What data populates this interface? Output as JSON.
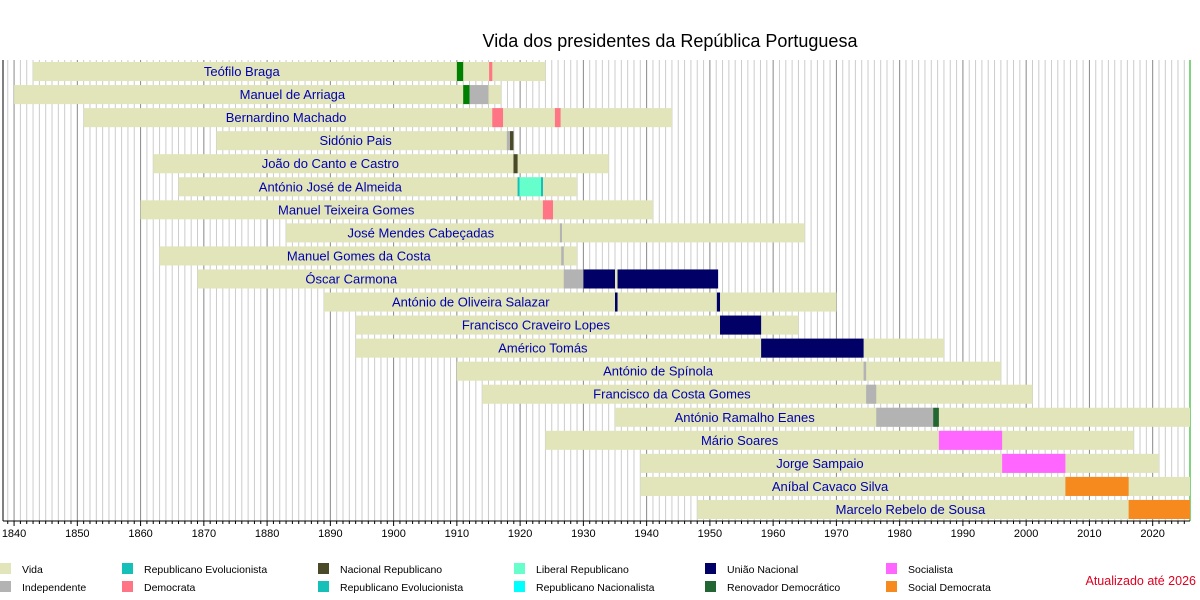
{
  "chart_data": {
    "type": "timeline",
    "title": "Vida dos presidentes da República Portuguesa",
    "xlim": [
      1838.25,
      2025.9
    ],
    "x_ticks": [
      1840,
      1850,
      1860,
      1870,
      1880,
      1890,
      1900,
      1910,
      1920,
      1930,
      1940,
      1950,
      1960,
      1970,
      1980,
      1990,
      2000,
      2010,
      2020
    ],
    "grid": "yearly vertical lines, darker each decade",
    "colors": {
      "vida": "#e1e5b9",
      "independente": "#b3b3b3",
      "rep_evol": "#14c0b8",
      "democrata": "#ff7585",
      "nac_rep": "#4a4a28",
      "liberal": "#66ffcc",
      "rep_nac": "#00ffff",
      "uniao": "#000066",
      "renovador": "#226633",
      "socialista": "#ff66ff",
      "social_dem": "#f68a1e",
      "republicano": "#008000"
    },
    "presidents": [
      {
        "name": "Teófilo Braga",
        "life": [
          1843,
          1924
        ],
        "label_year": 1876,
        "terms": [
          [
            1910,
            1911,
            "republicano"
          ],
          [
            1915.1,
            1915.6,
            "democrata"
          ]
        ]
      },
      {
        "name": "Manuel de Arriaga",
        "life": [
          1840,
          1917
        ],
        "label_year": 1884,
        "terms": [
          [
            1911,
            1912,
            "republicano"
          ],
          [
            1912,
            1915,
            "independente"
          ]
        ]
      },
      {
        "name": "Bernardino Machado",
        "life": [
          1851,
          1944
        ],
        "label_year": 1883,
        "terms": [
          [
            1915.6,
            1917.3,
            "democrata"
          ],
          [
            1925.5,
            1926.4,
            "democrata"
          ]
        ]
      },
      {
        "name": "Sidónio Pais",
        "life": [
          1872,
          1918.9
        ],
        "label_year": 1894,
        "terms": [
          [
            1917.9,
            1918.4,
            "independente"
          ],
          [
            1918.4,
            1918.95,
            "nac_rep"
          ]
        ]
      },
      {
        "name": "João do Canto e Castro",
        "life": [
          1862,
          1934
        ],
        "label_year": 1890,
        "terms": [
          [
            1918.95,
            1919.6,
            "nac_rep"
          ]
        ]
      },
      {
        "name": "António José de Almeida",
        "life": [
          1866,
          1929
        ],
        "label_year": 1890,
        "terms": [
          [
            1919.6,
            1919.9,
            "rep_evol"
          ],
          [
            1919.9,
            1923.3,
            "liberal"
          ],
          [
            1923.3,
            1923.6,
            "rep_evol"
          ]
        ]
      },
      {
        "name": "Manuel Teixeira Gomes",
        "life": [
          1860,
          1941
        ],
        "label_year": 1892.5,
        "terms": [
          [
            1923.6,
            1925.2,
            "democrata"
          ]
        ]
      },
      {
        "name": "José Mendes Cabeçadas",
        "life": [
          1883,
          1965
        ],
        "label_year": 1904.3,
        "terms": [
          [
            1926.3,
            1926.6,
            "independente"
          ]
        ]
      },
      {
        "name": "Manuel Gomes da Costa",
        "life": [
          1863,
          1929
        ],
        "label_year": 1894.5,
        "terms": [
          [
            1926.5,
            1926.9,
            "independente"
          ]
        ]
      },
      {
        "name": "Óscar Carmona",
        "life": [
          1869,
          1951.3
        ],
        "label_year": 1893.3,
        "terms": [
          [
            1926.9,
            1930,
            "independente"
          ],
          [
            1930,
            1935,
            "uniao"
          ],
          [
            1935.4,
            1951.3,
            "uniao"
          ]
        ]
      },
      {
        "name": "António de Oliveira Salazar",
        "life": [
          1889,
          1970
        ],
        "label_year": 1912.2,
        "terms": [
          [
            1935,
            1935.4,
            "uniao"
          ],
          [
            1951.1,
            1951.6,
            "uniao"
          ]
        ]
      },
      {
        "name": "Francisco Craveiro Lopes",
        "life": [
          1894,
          1964
        ],
        "label_year": 1922.5,
        "terms": [
          [
            1951.6,
            1958.1,
            "uniao"
          ]
        ]
      },
      {
        "name": "Américo Tomás",
        "life": [
          1894,
          1987
        ],
        "label_year": 1923.6,
        "terms": [
          [
            1958.1,
            1974.3,
            "uniao"
          ]
        ]
      },
      {
        "name": "António de Spínola",
        "life": [
          1910,
          1996
        ],
        "label_year": 1941.8,
        "terms": [
          [
            1974.3,
            1974.7,
            "independente"
          ]
        ]
      },
      {
        "name": "Francisco da Costa Gomes",
        "life": [
          1914,
          2001
        ],
        "label_year": 1944,
        "terms": [
          [
            1974.7,
            1976.3,
            "independente"
          ]
        ]
      },
      {
        "name": "António Ramalho Eanes",
        "life": [
          1935,
          2026
        ],
        "label_year": 1955.5,
        "terms": [
          [
            1976.3,
            1985.3,
            "independente"
          ],
          [
            1985.3,
            1986.2,
            "renovador"
          ]
        ]
      },
      {
        "name": "Mário Soares",
        "life": [
          1924,
          2017
        ],
        "label_year": 1954.7,
        "terms": [
          [
            1986.2,
            1996.2,
            "socialista"
          ]
        ]
      },
      {
        "name": "Jorge Sampaio",
        "life": [
          1939,
          2021
        ],
        "label_year": 1967.4,
        "terms": [
          [
            1996.2,
            2006.2,
            "socialista"
          ]
        ]
      },
      {
        "name": "Aníbal Cavaco Silva",
        "life": [
          1939,
          2026
        ],
        "label_year": 1969,
        "terms": [
          [
            2006.2,
            2016.2,
            "social_dem"
          ]
        ]
      },
      {
        "name": "Marcelo Rebelo de Sousa",
        "life": [
          1948,
          2026
        ],
        "label_year": 1981.7,
        "terms": [
          [
            2016.2,
            2026,
            "social_dem"
          ]
        ]
      }
    ],
    "legend": [
      {
        "label": "Vida",
        "color": "vida"
      },
      {
        "label": "Independente",
        "color": "independente"
      },
      {
        "label": "Republicano Evolucionista",
        "color": "rep_evol"
      },
      {
        "label": "Democrata",
        "color": "democrata"
      },
      {
        "label": "Nacional Republicano",
        "color": "nac_rep"
      },
      {
        "label": "Republicano Evolucionista",
        "color": "rep_evol"
      },
      {
        "label": "Liberal Republicano",
        "color": "liberal"
      },
      {
        "label": "Republicano Nacionalista",
        "color": "rep_nac"
      },
      {
        "label": "União Nacional",
        "color": "uniao"
      },
      {
        "label": "Renovador Democrático",
        "color": "renovador"
      },
      {
        "label": "Socialista",
        "color": "socialista"
      },
      {
        "label": "Social Democrata",
        "color": "social_dem"
      }
    ],
    "note": "Atualizado até 2026"
  }
}
